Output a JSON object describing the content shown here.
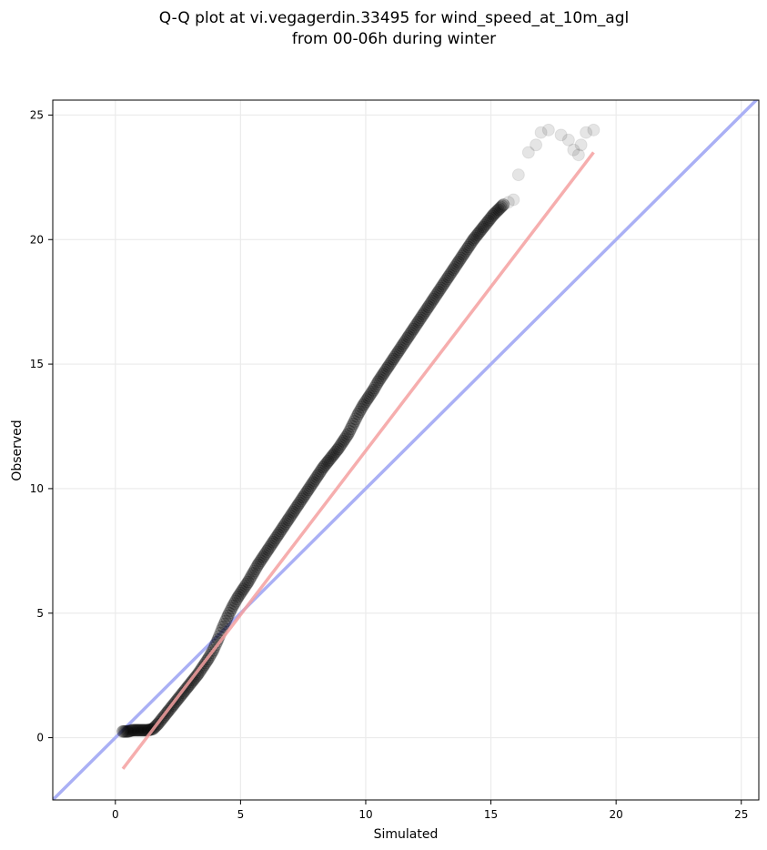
{
  "chart_data": {
    "type": "scatter",
    "title_line1": "Q-Q plot at vi.vegagerdin.33495 for wind_speed_at_10m_agl",
    "title_line2": "from 00-06h during winter",
    "xlabel": "Simulated",
    "ylabel": "Observed",
    "xlim": [
      -2.5,
      25.7
    ],
    "ylim": [
      -2.5,
      25.6
    ],
    "xticks": [
      0,
      5,
      10,
      15,
      20,
      25
    ],
    "yticks": [
      0,
      5,
      10,
      15,
      20,
      25
    ],
    "grid": true,
    "series": [
      {
        "kind": "quantile_points",
        "color": "#000000",
        "x": [
          0.3,
          0.5,
          0.7,
          0.9,
          1.1,
          1.3,
          1.5,
          1.7,
          1.9,
          2.1,
          2.3,
          2.5,
          2.7,
          2.9,
          3.1,
          3.3,
          3.5,
          3.7,
          3.9,
          4.1,
          4.3,
          4.5,
          4.7,
          4.9,
          5.1,
          5.3,
          5.5,
          5.7,
          5.9,
          6.1,
          6.3,
          6.5,
          6.7,
          6.9,
          7.1,
          7.3,
          7.5,
          7.7,
          7.9,
          8.1,
          8.3,
          8.5,
          8.7,
          8.9,
          9.1,
          9.3,
          9.5,
          9.7,
          9.9,
          10.1,
          10.3,
          10.5,
          10.7,
          10.9,
          11.1,
          11.3,
          11.5,
          11.7,
          11.9,
          12.1,
          12.3,
          12.5,
          12.7,
          12.9,
          13.1,
          13.3,
          13.5,
          13.7,
          13.9,
          14.1,
          14.3,
          14.5,
          14.7,
          14.9,
          15.1,
          15.3,
          15.5,
          15.7,
          15.9,
          16.1,
          16.5,
          16.8,
          17.0,
          17.3,
          17.8,
          18.1,
          18.3,
          18.5,
          18.6,
          18.8,
          19.1
        ],
        "y": [
          0.25,
          0.25,
          0.3,
          0.3,
          0.3,
          0.3,
          0.35,
          0.55,
          0.8,
          1.05,
          1.3,
          1.55,
          1.8,
          2.05,
          2.3,
          2.55,
          2.85,
          3.15,
          3.5,
          3.95,
          4.45,
          4.9,
          5.3,
          5.65,
          5.95,
          6.25,
          6.6,
          6.95,
          7.25,
          7.55,
          7.85,
          8.15,
          8.45,
          8.75,
          9.05,
          9.35,
          9.65,
          9.95,
          10.25,
          10.55,
          10.85,
          11.1,
          11.35,
          11.6,
          11.9,
          12.2,
          12.6,
          13.0,
          13.35,
          13.65,
          13.95,
          14.3,
          14.6,
          14.9,
          15.2,
          15.5,
          15.8,
          16.1,
          16.4,
          16.7,
          17.0,
          17.3,
          17.6,
          17.9,
          18.2,
          18.5,
          18.8,
          19.1,
          19.4,
          19.7,
          20.0,
          20.25,
          20.5,
          20.75,
          21.0,
          21.2,
          21.4,
          21.5,
          21.6,
          22.6,
          23.5,
          23.8,
          24.3,
          24.4,
          24.2,
          24.0,
          23.6,
          23.4,
          23.8,
          24.3,
          24.4
        ]
      },
      {
        "kind": "fit_line",
        "color": "#f4a0a0",
        "x": [
          0.3,
          19.1
        ],
        "y": [
          -1.25,
          23.5
        ]
      },
      {
        "kind": "identity_line",
        "color": "#aab0f5",
        "x": [
          -2.5,
          25.7
        ],
        "y": [
          -2.5,
          25.7
        ]
      }
    ]
  }
}
